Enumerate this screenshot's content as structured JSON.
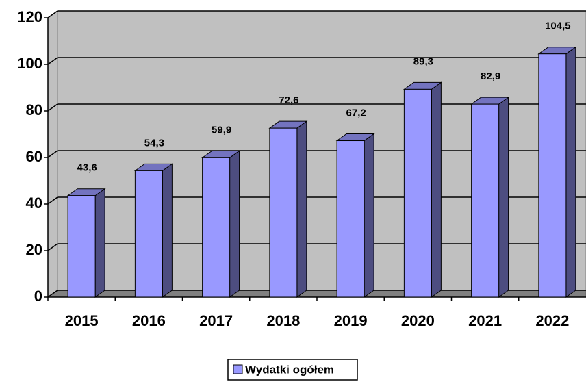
{
  "chart_data": {
    "type": "bar",
    "categories": [
      "2015",
      "2016",
      "2017",
      "2018",
      "2019",
      "2020",
      "2021",
      "2022"
    ],
    "series": [
      {
        "name": "Wydatki ogółem",
        "color": "#9999ff",
        "values": [
          43.6,
          54.3,
          59.9,
          72.6,
          67.2,
          89.3,
          82.9,
          104.5
        ],
        "value_labels": [
          "43,6",
          "54,3",
          "59,9",
          "72,6",
          "67,2",
          "89,3",
          "82,9",
          "104,5"
        ]
      }
    ],
    "ylim": [
      0,
      120
    ],
    "yticks": [
      0,
      20,
      40,
      60,
      80,
      100,
      120
    ],
    "grid": true,
    "legend": "bottom"
  }
}
